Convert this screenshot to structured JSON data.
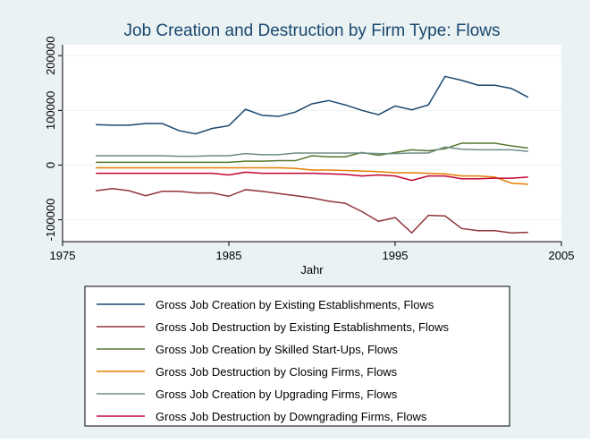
{
  "chart_data": {
    "type": "line",
    "title": "Job Creation and Destruction by Firm Type: Flows",
    "x_label": "Jahr",
    "x": [
      1977,
      1978,
      1979,
      1980,
      1981,
      1982,
      1983,
      1984,
      1985,
      1986,
      1987,
      1988,
      1989,
      1990,
      1991,
      1992,
      1993,
      1994,
      1995,
      1996,
      1997,
      1998,
      1999,
      2000,
      2001,
      2002,
      2003
    ],
    "xlim": [
      1975,
      2005
    ],
    "xticks": [
      1975,
      1985,
      1995,
      2005
    ],
    "ylim": [
      -140000,
      220000
    ],
    "yticks": [
      -100000,
      0,
      100000,
      200000
    ],
    "grid": true,
    "series": [
      {
        "name": "Gross Job Creation by Existing Establishments, Flows",
        "color": "#1a476f",
        "values": [
          74000,
          73000,
          73000,
          76000,
          76000,
          63000,
          57000,
          67000,
          72000,
          102000,
          91000,
          89000,
          97000,
          112000,
          118000,
          110000,
          100000,
          92000,
          108000,
          101000,
          110000,
          162000,
          155000,
          146000,
          146000,
          140000,
          124000
        ]
      },
      {
        "name": "Gross Job Destruction by Existing Establishments, Flows",
        "color": "#90353b",
        "values": [
          -47000,
          -43000,
          -47000,
          -56000,
          -48000,
          -48000,
          -51000,
          -51000,
          -57000,
          -45000,
          -48000,
          -52000,
          -56000,
          -60000,
          -66000,
          -70000,
          -85000,
          -103000,
          -96000,
          -124000,
          -92000,
          -93000,
          -116000,
          -120000,
          -120000,
          -124000,
          -123000
        ]
      },
      {
        "name": "Gross Job Creation by Skilled Start-Ups, Flows",
        "color": "#55752f",
        "values": [
          5000,
          5000,
          5000,
          5000,
          5000,
          5000,
          5000,
          5000,
          5000,
          7000,
          7000,
          8000,
          8000,
          17000,
          15000,
          15000,
          23000,
          18000,
          23000,
          28000,
          26000,
          30000,
          40000,
          40000,
          40000,
          35000,
          31000
        ]
      },
      {
        "name": "Gross Job Destruction by Closing Firms, Flows",
        "color": "#e37e00",
        "values": [
          -5000,
          -5000,
          -5000,
          -5000,
          -5000,
          -5000,
          -5000,
          -5000,
          -5000,
          -5000,
          -5000,
          -5000,
          -6000,
          -9000,
          -9000,
          -10000,
          -11000,
          -12000,
          -14000,
          -14000,
          -15000,
          -16000,
          -20000,
          -20000,
          -22000,
          -33000,
          -35000
        ]
      },
      {
        "name": "Gross Job Creation by Upgrading Firms, Flows",
        "color": "#6e8e84",
        "values": [
          17000,
          17000,
          17000,
          17000,
          17000,
          16000,
          16000,
          17000,
          17000,
          21000,
          19000,
          19000,
          22000,
          22000,
          22000,
          22000,
          22000,
          21000,
          21000,
          22000,
          22000,
          33000,
          29000,
          28000,
          28000,
          28000,
          25000
        ]
      },
      {
        "name": "Gross Job Destruction by Downgrading Firms, Flows",
        "color": "#c10534",
        "values": [
          -15000,
          -15000,
          -15000,
          -15000,
          -15000,
          -15000,
          -15000,
          -15000,
          -18000,
          -13000,
          -15000,
          -15000,
          -15000,
          -15000,
          -16000,
          -17000,
          -20000,
          -18000,
          -20000,
          -28000,
          -20000,
          -20000,
          -25000,
          -25000,
          -24000,
          -24000,
          -22000
        ]
      }
    ]
  }
}
